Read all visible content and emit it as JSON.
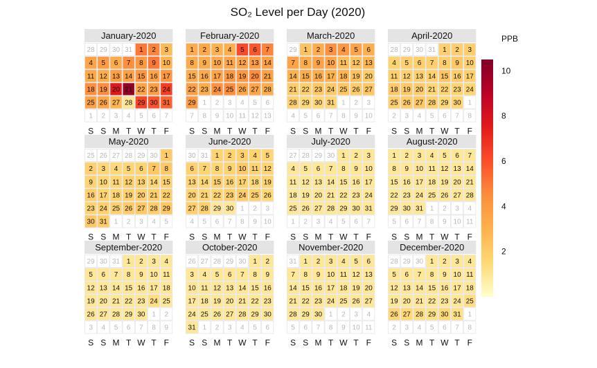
{
  "title": "SO₂ Level per Day (2020)",
  "legend": {
    "title": "PPB",
    "min": 0,
    "max": 10.5,
    "ticks": [
      2,
      4,
      6,
      8,
      10
    ],
    "colors": [
      "#ffffcc",
      "#fed976",
      "#feb24c",
      "#fd8d3c",
      "#fc4e2a",
      "#e31a1c",
      "#bd0026",
      "#800026"
    ]
  },
  "chart_data": {
    "type": "heatmap",
    "title": "SO₂ Level per Day (2020)",
    "year": 2020,
    "weekday_labels": [
      "S",
      "S",
      "M",
      "T",
      "W",
      "T",
      "F"
    ],
    "week_start": "Saturday",
    "value_label": "PPB",
    "colorbar_range": [
      0,
      10.5
    ],
    "months": [
      {
        "name": "January-2020",
        "values": [
          5.0,
          4.7,
          2.6,
          3.6,
          3.9,
          3.3,
          4.4,
          4.0,
          5.0,
          2.9,
          3.4,
          3.2,
          3.8,
          3.7,
          4.1,
          3.6,
          4.1,
          4.4,
          4.5,
          7.6,
          10.0,
          3.6,
          3.8,
          6.5,
          3.7,
          3.6,
          2.9,
          1.0,
          6.3,
          5.9,
          5.5
        ]
      },
      {
        "name": "February-2020",
        "values": [
          3.3,
          3.4,
          3.0,
          3.1,
          6.1,
          5.8,
          4.7,
          3.3,
          3.3,
          3.4,
          3.5,
          3.5,
          3.8,
          3.7,
          3.3,
          3.4,
          3.6,
          4.0,
          4.1,
          4.5,
          3.7,
          3.7,
          3.3,
          4.3,
          4.5,
          3.5,
          3.5,
          3.2,
          3.9
        ]
      },
      {
        "name": "March-2020",
        "values": [
          2.4,
          3.3,
          4.3,
          4.1,
          3.6,
          3.1,
          3.6,
          3.3,
          3.6,
          3.5,
          2.5,
          2.4,
          2.9,
          3.0,
          3.3,
          3.2,
          3.0,
          2.9,
          2.4,
          2.0,
          2.0,
          1.9,
          2.2,
          2.1,
          2.2,
          2.0,
          2.2,
          1.8,
          1.5,
          1.5,
          1.6
        ]
      },
      {
        "name": "April-2020",
        "values": [
          1.8,
          1.9,
          1.9,
          1.7,
          1.8,
          1.9,
          1.8,
          1.9,
          2.1,
          1.8,
          1.9,
          1.8,
          1.8,
          1.8,
          2.2,
          2.0,
          1.9,
          2.1,
          2.1,
          2.0,
          1.6,
          1.7,
          1.7,
          1.6,
          1.8,
          2.0,
          2.1,
          1.8,
          1.5,
          1.6
        ]
      },
      {
        "name": "May-2020",
        "values": [
          2.0,
          1.8,
          1.6,
          1.5,
          1.6,
          1.7,
          2.2,
          2.1,
          1.7,
          1.6,
          1.6,
          1.8,
          1.7,
          1.6,
          1.8,
          1.9,
          1.7,
          1.7,
          1.8,
          1.8,
          1.9,
          1.9,
          1.7,
          1.8,
          1.8,
          2.0,
          2.1,
          2.0,
          2.2,
          2.1,
          2.0
        ]
      },
      {
        "name": "June-2020",
        "values": [
          1.7,
          1.7,
          1.8,
          1.7,
          1.6,
          1.8,
          1.7,
          1.6,
          1.7,
          2.1,
          1.7,
          1.7,
          1.7,
          1.6,
          1.8,
          1.7,
          1.7,
          1.5,
          1.7,
          1.7,
          1.6,
          1.6,
          1.9,
          2.0,
          1.8,
          1.5,
          1.9,
          1.8,
          0.9,
          0.9
        ]
      },
      {
        "name": "July-2020",
        "values": [
          0.9,
          0.9,
          0.9,
          0.9,
          0.9,
          0.9,
          0.9,
          0.9,
          0.9,
          0.9,
          0.9,
          0.9,
          0.9,
          0.9,
          0.9,
          0.9,
          0.9,
          0.9,
          0.9,
          0.9,
          0.9,
          0.9,
          0.9,
          0.9,
          0.9,
          0.9,
          0.9,
          0.9,
          0.9,
          0.9,
          0.9
        ]
      },
      {
        "name": "August-2020",
        "values": [
          0.9,
          0.9,
          0.9,
          0.9,
          0.9,
          0.9,
          0.9,
          0.9,
          0.9,
          0.9,
          0.9,
          0.9,
          0.9,
          0.9,
          0.9,
          0.9,
          0.9,
          0.9,
          0.9,
          0.9,
          0.9,
          0.9,
          0.9,
          0.9,
          0.9,
          0.9,
          0.9,
          0.9,
          0.9,
          0.9,
          0.9
        ]
      },
      {
        "name": "September-2020",
        "values": [
          0.9,
          0.9,
          0.9,
          0.9,
          0.9,
          0.9,
          0.9,
          0.9,
          0.9,
          0.9,
          0.9,
          0.9,
          0.9,
          0.9,
          0.9,
          0.9,
          0.9,
          0.9,
          0.9,
          0.9,
          0.9,
          0.9,
          0.9,
          1.3,
          0.9,
          0.9,
          0.9,
          0.9,
          0.9,
          0.9
        ]
      },
      {
        "name": "October-2020",
        "values": [
          0.9,
          0.9,
          0.9,
          0.9,
          0.9,
          0.9,
          0.9,
          0.9,
          0.9,
          0.9,
          0.9,
          0.9,
          0.9,
          0.9,
          0.9,
          0.9,
          0.9,
          0.9,
          0.9,
          0.9,
          0.9,
          0.9,
          0.9,
          0.9,
          0.9,
          0.9,
          0.9,
          0.9,
          0.9,
          0.9,
          0.9
        ]
      },
      {
        "name": "November-2020",
        "values": [
          0.9,
          0.9,
          0.9,
          0.9,
          0.9,
          0.9,
          0.9,
          0.9,
          0.9,
          0.9,
          0.9,
          0.9,
          0.9,
          0.9,
          0.9,
          0.9,
          0.9,
          0.9,
          0.9,
          0.9,
          0.9,
          0.9,
          0.9,
          0.9,
          0.9,
          0.9,
          0.9,
          0.9,
          0.9,
          0.9
        ]
      },
      {
        "name": "December-2020",
        "values": [
          0.9,
          0.9,
          0.9,
          0.9,
          0.9,
          0.9,
          0.9,
          0.9,
          0.9,
          0.9,
          0.9,
          0.9,
          0.9,
          0.9,
          0.9,
          0.9,
          0.9,
          0.9,
          0.9,
          0.9,
          0.9,
          0.9,
          0.9,
          0.9,
          1.3,
          1.6,
          1.5,
          1.3,
          1.2,
          1.5,
          1.2
        ]
      }
    ]
  }
}
